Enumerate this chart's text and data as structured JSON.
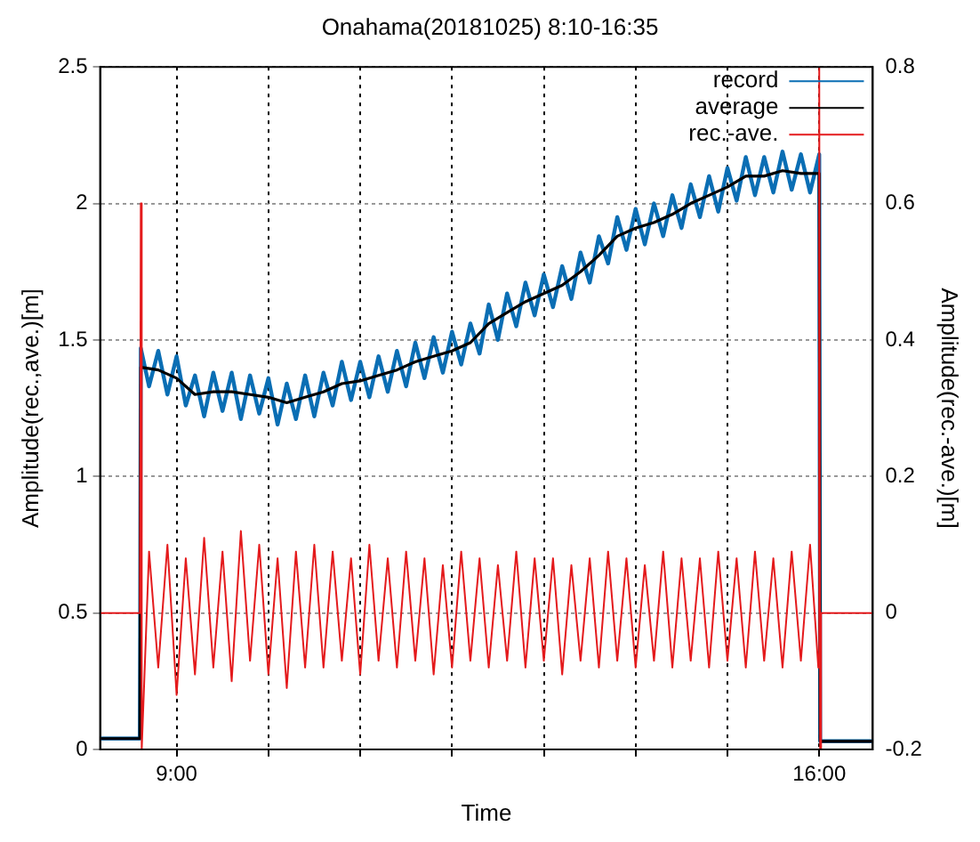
{
  "chart_data": {
    "type": "line",
    "title": "Onahama(20181025) 8:10-16:35",
    "xlabel": "Time",
    "ylabel": "Amplitude(rec.,ave.)[m]",
    "y2label": "Amplitude(rec.-ave.)[m]",
    "xlim": [
      8.1667,
      16.5833
    ],
    "xticks": [
      {
        "value": 9,
        "label": "9:00"
      },
      {
        "value": 10,
        "label": null
      },
      {
        "value": 11,
        "label": null
      },
      {
        "value": 12,
        "label": null
      },
      {
        "value": 13,
        "label": null
      },
      {
        "value": 14,
        "label": null
      },
      {
        "value": 15,
        "label": null
      },
      {
        "value": 16,
        "label": "16:00"
      }
    ],
    "ylim": [
      0,
      2.5
    ],
    "yticks": [
      0,
      0.5,
      1,
      1.5,
      2,
      2.5
    ],
    "y2lim": [
      -0.2,
      0.8
    ],
    "y2ticks": [
      -0.2,
      0,
      0.2,
      0.4,
      0.6,
      0.8
    ],
    "grid": true,
    "legend": "top right",
    "marker": "none",
    "line_style": "solid",
    "series": [
      {
        "name": "record",
        "color": "#0a6eb4",
        "x": [
          8.17,
          8.6,
          8.61,
          8.7,
          8.8,
          8.9,
          9.0,
          9.1,
          9.2,
          9.3,
          9.4,
          9.5,
          9.6,
          9.7,
          9.8,
          9.9,
          10.0,
          10.1,
          10.2,
          10.3,
          10.4,
          10.5,
          10.6,
          10.7,
          10.8,
          10.9,
          11.0,
          11.1,
          11.2,
          11.3,
          11.4,
          11.5,
          11.6,
          11.7,
          11.8,
          11.9,
          12.0,
          12.1,
          12.2,
          12.3,
          12.4,
          12.5,
          12.6,
          12.7,
          12.8,
          12.9,
          13.0,
          13.1,
          13.2,
          13.3,
          13.4,
          13.5,
          13.6,
          13.7,
          13.8,
          13.9,
          14.0,
          14.1,
          14.2,
          14.3,
          14.4,
          14.5,
          14.6,
          14.7,
          14.8,
          14.9,
          15.0,
          15.1,
          15.2,
          15.3,
          15.4,
          15.5,
          15.6,
          15.7,
          15.8,
          15.9,
          16.0,
          16.01,
          16.58
        ],
        "values": [
          0.04,
          0.04,
          1.47,
          1.33,
          1.46,
          1.3,
          1.44,
          1.26,
          1.37,
          1.22,
          1.38,
          1.24,
          1.38,
          1.21,
          1.37,
          1.23,
          1.36,
          1.19,
          1.34,
          1.21,
          1.37,
          1.22,
          1.38,
          1.26,
          1.42,
          1.28,
          1.42,
          1.29,
          1.44,
          1.31,
          1.46,
          1.33,
          1.49,
          1.36,
          1.51,
          1.38,
          1.53,
          1.41,
          1.56,
          1.45,
          1.63,
          1.5,
          1.67,
          1.55,
          1.71,
          1.59,
          1.74,
          1.62,
          1.77,
          1.65,
          1.82,
          1.71,
          1.88,
          1.78,
          1.95,
          1.83,
          1.98,
          1.85,
          2.0,
          1.88,
          2.03,
          1.91,
          2.07,
          1.95,
          2.1,
          1.97,
          2.13,
          2.01,
          2.17,
          2.03,
          2.17,
          2.04,
          2.19,
          2.05,
          2.18,
          2.04,
          2.18,
          0.03,
          0.03
        ]
      },
      {
        "name": "average",
        "color": "#000000",
        "x": [
          8.17,
          8.6,
          8.61,
          8.8,
          9.0,
          9.2,
          9.4,
          9.6,
          9.8,
          10.0,
          10.2,
          10.4,
          10.6,
          10.8,
          11.0,
          11.2,
          11.4,
          11.6,
          11.8,
          12.0,
          12.2,
          12.4,
          12.6,
          12.8,
          13.0,
          13.2,
          13.4,
          13.6,
          13.8,
          14.0,
          14.2,
          14.4,
          14.6,
          14.8,
          15.0,
          15.2,
          15.4,
          15.6,
          15.8,
          16.0,
          16.01,
          16.58
        ],
        "values": [
          0.04,
          0.04,
          1.4,
          1.39,
          1.36,
          1.3,
          1.31,
          1.31,
          1.3,
          1.29,
          1.27,
          1.29,
          1.31,
          1.34,
          1.35,
          1.37,
          1.39,
          1.42,
          1.44,
          1.46,
          1.49,
          1.56,
          1.6,
          1.64,
          1.67,
          1.7,
          1.75,
          1.81,
          1.88,
          1.91,
          1.93,
          1.96,
          2.0,
          2.03,
          2.06,
          2.1,
          2.1,
          2.12,
          2.11,
          2.11,
          0.03,
          0.03
        ]
      },
      {
        "name": "rec.-ave.",
        "color": "#e41a1c",
        "axis": "y2",
        "x": [
          8.17,
          8.6,
          8.61,
          8.62,
          8.7,
          8.8,
          8.9,
          9.0,
          9.1,
          9.2,
          9.3,
          9.4,
          9.5,
          9.6,
          9.7,
          9.8,
          9.9,
          10.0,
          10.1,
          10.2,
          10.3,
          10.4,
          10.5,
          10.6,
          10.7,
          10.8,
          10.9,
          11.0,
          11.1,
          11.2,
          11.3,
          11.4,
          11.5,
          11.6,
          11.7,
          11.8,
          11.9,
          12.0,
          12.1,
          12.2,
          12.3,
          12.4,
          12.5,
          12.6,
          12.7,
          12.8,
          12.9,
          13.0,
          13.1,
          13.2,
          13.3,
          13.4,
          13.5,
          13.6,
          13.7,
          13.8,
          13.9,
          14.0,
          14.1,
          14.2,
          14.3,
          14.4,
          14.5,
          14.6,
          14.7,
          14.8,
          14.9,
          15.0,
          15.1,
          15.2,
          15.3,
          15.4,
          15.5,
          15.6,
          15.7,
          15.8,
          15.9,
          15.99,
          16.0,
          16.01,
          16.02,
          16.58
        ],
        "values": [
          0,
          0,
          0.6,
          -0.2,
          0.09,
          -0.08,
          0.1,
          -0.12,
          0.08,
          -0.09,
          0.11,
          -0.08,
          0.09,
          -0.1,
          0.12,
          -0.07,
          0.1,
          -0.09,
          0.08,
          -0.11,
          0.09,
          -0.08,
          0.1,
          -0.08,
          0.09,
          -0.07,
          0.08,
          -0.09,
          0.1,
          -0.07,
          0.08,
          -0.08,
          0.09,
          -0.07,
          0.08,
          -0.09,
          0.07,
          -0.08,
          0.09,
          -0.07,
          0.08,
          -0.08,
          0.07,
          -0.07,
          0.09,
          -0.08,
          0.08,
          -0.07,
          0.08,
          -0.09,
          0.07,
          -0.07,
          0.08,
          -0.08,
          0.09,
          -0.07,
          0.08,
          -0.08,
          0.07,
          -0.07,
          0.09,
          -0.08,
          0.08,
          -0.07,
          0.08,
          -0.08,
          0.09,
          -0.07,
          0.08,
          -0.08,
          0.09,
          -0.07,
          0.08,
          -0.08,
          0.09,
          -0.07,
          0.1,
          -0.08,
          0.8,
          -0.2,
          0,
          0
        ]
      }
    ]
  }
}
